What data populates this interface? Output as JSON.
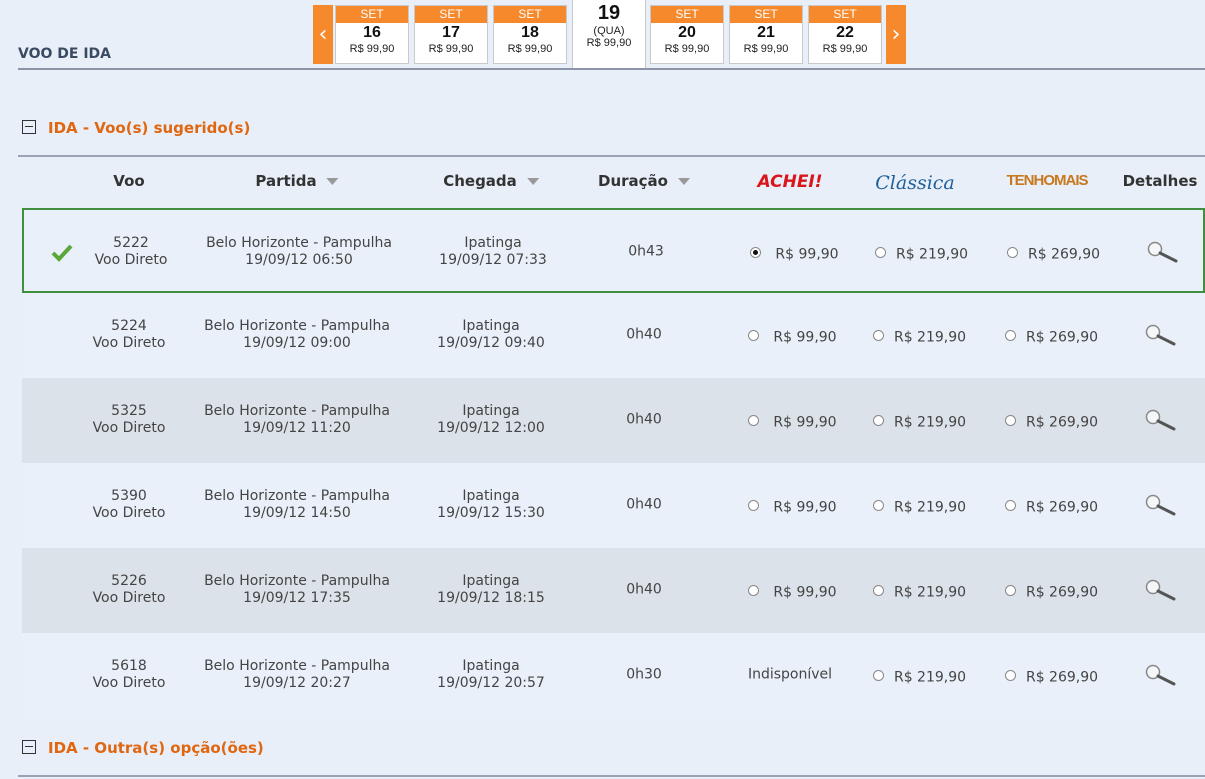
{
  "header": {
    "title": "VOO DE IDA"
  },
  "dates": [
    {
      "month": "SET",
      "day": "16",
      "price": "R$ 99,90"
    },
    {
      "month": "SET",
      "day": "17",
      "price": "R$ 99,90"
    },
    {
      "month": "SET",
      "day": "18",
      "price": "R$ 99,90"
    },
    {
      "month": "SET",
      "day": "19",
      "weekday": "(QUA)",
      "price": "R$ 99,90",
      "selected": true
    },
    {
      "month": "SET",
      "day": "20",
      "price": "R$ 99,90"
    },
    {
      "month": "SET",
      "day": "21",
      "price": "R$ 99,90"
    },
    {
      "month": "SET",
      "day": "22",
      "price": "R$ 99,90"
    }
  ],
  "suggested": {
    "title": "IDA - Voo(s) sugerido(s)"
  },
  "table": {
    "columns": [
      "Voo",
      "Partida",
      "Chegada",
      "Duração",
      "ACHEI!",
      "Clássica",
      "TENHOMAIS",
      "Detalhes"
    ],
    "rows": [
      {
        "flight": "5222",
        "kind": "Voo Direto",
        "origin": "Belo Horizonte - Pampulha",
        "departure": "19/09/12 06:50",
        "destination": "Ipatinga",
        "arrival": "19/09/12 07:33",
        "duration": "0h43",
        "chosen": true,
        "fares": [
          {
            "price": "R$ 99,90",
            "checked": true
          },
          {
            "price": "R$ 219,90"
          },
          {
            "price": "R$ 269,90"
          }
        ]
      },
      {
        "flight": "5224",
        "kind": "Voo Direto",
        "origin": "Belo Horizonte - Pampulha",
        "departure": "19/09/12 09:00",
        "destination": "Ipatinga",
        "arrival": "19/09/12 09:40",
        "duration": "0h40",
        "fares": [
          {
            "price": "R$ 99,90"
          },
          {
            "price": "R$ 219,90"
          },
          {
            "price": "R$ 269,90"
          }
        ]
      },
      {
        "flight": "5325",
        "kind": "Voo Direto",
        "origin": "Belo Horizonte - Pampulha",
        "departure": "19/09/12 11:20",
        "destination": "Ipatinga",
        "arrival": "19/09/12 12:00",
        "duration": "0h40",
        "fares": [
          {
            "price": "R$ 99,90"
          },
          {
            "price": "R$ 219,90"
          },
          {
            "price": "R$ 269,90"
          }
        ]
      },
      {
        "flight": "5390",
        "kind": "Voo Direto",
        "origin": "Belo Horizonte - Pampulha",
        "departure": "19/09/12 14:50",
        "destination": "Ipatinga",
        "arrival": "19/09/12 15:30",
        "duration": "0h40",
        "fares": [
          {
            "price": "R$ 99,90"
          },
          {
            "price": "R$ 219,90"
          },
          {
            "price": "R$ 269,90"
          }
        ]
      },
      {
        "flight": "5226",
        "kind": "Voo Direto",
        "origin": "Belo Horizonte - Pampulha",
        "departure": "19/09/12 17:35",
        "destination": "Ipatinga",
        "arrival": "19/09/12 18:15",
        "duration": "0h40",
        "fares": [
          {
            "price": "R$ 99,90"
          },
          {
            "price": "R$ 219,90"
          },
          {
            "price": "R$ 269,90"
          }
        ]
      },
      {
        "flight": "5618",
        "kind": "Voo Direto",
        "origin": "Belo Horizonte - Pampulha",
        "departure": "19/09/12 20:27",
        "destination": "Ipatinga",
        "arrival": "19/09/12 20:57",
        "duration": "0h30",
        "fares": [
          {
            "status": "Indisponível"
          },
          {
            "price": "R$ 219,90"
          },
          {
            "price": "R$ 269,90"
          }
        ]
      }
    ]
  },
  "others": {
    "title": "IDA - Outra(s) opção(ões)"
  }
}
